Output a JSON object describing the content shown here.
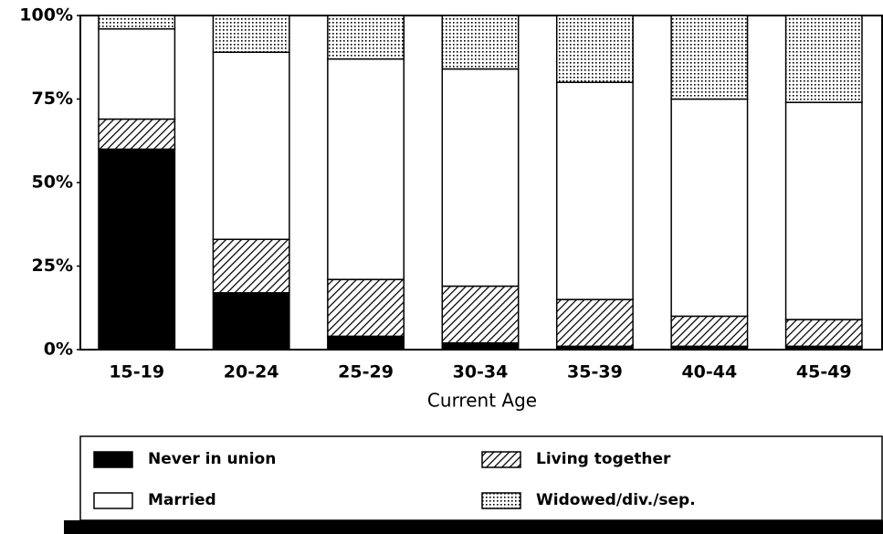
{
  "chart_data": {
    "type": "bar",
    "stacked": true,
    "x_label": "Current Age",
    "categories": [
      "15-19",
      "20-24",
      "25-29",
      "30-34",
      "35-39",
      "40-44",
      "45-49"
    ],
    "series": [
      {
        "name": "Never in union",
        "color": "#000000",
        "pattern": "solid",
        "values": [
          60,
          17,
          4,
          2,
          1,
          1,
          1
        ]
      },
      {
        "name": "Married",
        "color": "#ffffff",
        "pattern": "solid",
        "values": [
          27,
          56,
          66,
          65,
          65,
          65,
          65
        ]
      },
      {
        "name": "Living together",
        "color": "#000000",
        "pattern": "hatch",
        "values": [
          9,
          16,
          17,
          17,
          14,
          9,
          8
        ]
      },
      {
        "name": "Widowed/div./sep.",
        "color": "#000000",
        "pattern": "dots",
        "values": [
          4,
          11,
          13,
          16,
          20,
          25,
          26
        ]
      }
    ],
    "stack_order": [
      0,
      2,
      1,
      3
    ],
    "ylim": [
      0,
      100
    ],
    "yticks": [
      {
        "value": 0,
        "label": "0%"
      },
      {
        "value": 25,
        "label": "25%"
      },
      {
        "value": 50,
        "label": "50%"
      },
      {
        "value": 75,
        "label": "75%"
      },
      {
        "value": 100,
        "label": "100%"
      }
    ],
    "legend": "bottom"
  }
}
